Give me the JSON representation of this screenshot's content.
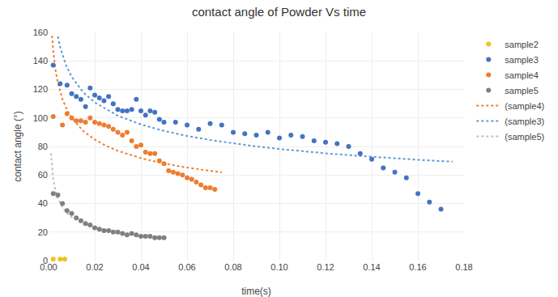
{
  "chart_data": {
    "type": "scatter",
    "title": "contact angle of Powder Vs time",
    "x_label": "time(s)",
    "y_label": "contact angle (°)",
    "xlim": [
      0,
      0.18
    ],
    "ylim": [
      0,
      160
    ],
    "xticks": [
      {
        "value": 0,
        "label": "0.00"
      },
      {
        "value": 0.02,
        "label": "0.02"
      },
      {
        "value": 0.04,
        "label": "0.04"
      },
      {
        "value": 0.06,
        "label": "0.06"
      },
      {
        "value": 0.08,
        "label": "0.08"
      },
      {
        "value": 0.1,
        "label": "0.10"
      },
      {
        "value": 0.12,
        "label": "0.12"
      },
      {
        "value": 0.14,
        "label": "0.14"
      },
      {
        "value": 0.16,
        "label": "0.16"
      },
      {
        "value": 0.18,
        "label": "0.18"
      }
    ],
    "yticks": [
      0,
      20,
      40,
      60,
      80,
      100,
      120,
      140,
      160
    ],
    "grid": true,
    "legend": "right",
    "series": [
      {
        "name": "sample2",
        "type": "scatter",
        "marker": "circle",
        "color": "#f0c020",
        "x": [
          0.002,
          0.005,
          0.007
        ],
        "values": [
          1,
          1,
          1
        ]
      },
      {
        "name": "sample3",
        "type": "scatter",
        "marker": "circle",
        "color": "#4472c4",
        "x": [
          0.002,
          0.005,
          0.008,
          0.01,
          0.012,
          0.014,
          0.016,
          0.018,
          0.02,
          0.022,
          0.024,
          0.026,
          0.028,
          0.03,
          0.032,
          0.034,
          0.036,
          0.038,
          0.04,
          0.042,
          0.044,
          0.046,
          0.048,
          0.05,
          0.055,
          0.06,
          0.065,
          0.07,
          0.075,
          0.08,
          0.085,
          0.09,
          0.095,
          0.1,
          0.105,
          0.11,
          0.115,
          0.12,
          0.125,
          0.13,
          0.135,
          0.14,
          0.145,
          0.15,
          0.155,
          0.16,
          0.165,
          0.17
        ],
        "values": [
          137,
          124,
          123,
          117,
          115,
          113,
          108,
          121,
          116,
          114,
          112,
          115,
          110,
          106,
          105,
          105,
          106,
          113,
          105,
          102,
          105,
          104,
          99,
          97,
          97,
          95,
          92,
          96,
          95,
          90,
          89,
          88,
          90,
          86,
          88,
          87,
          84,
          83,
          82,
          80,
          75,
          71,
          65,
          62,
          58,
          47,
          41,
          36
        ]
      },
      {
        "name": "sample4",
        "type": "scatter",
        "marker": "circle",
        "color": "#ed7d31",
        "x": [
          0.002,
          0.006,
          0.008,
          0.01,
          0.012,
          0.014,
          0.016,
          0.018,
          0.02,
          0.022,
          0.024,
          0.026,
          0.028,
          0.03,
          0.032,
          0.034,
          0.036,
          0.038,
          0.04,
          0.042,
          0.044,
          0.046,
          0.048,
          0.05,
          0.052,
          0.054,
          0.056,
          0.058,
          0.06,
          0.062,
          0.064,
          0.066,
          0.068,
          0.07,
          0.072
        ],
        "values": [
          101,
          95,
          103,
          100,
          98,
          98,
          97,
          100,
          97,
          96,
          95,
          94,
          92,
          90,
          88,
          90,
          84,
          80,
          81,
          76,
          75,
          75,
          70,
          68,
          63,
          62,
          61,
          60,
          58,
          57,
          55,
          53,
          51,
          51,
          50
        ]
      },
      {
        "name": "sample5",
        "type": "scatter",
        "marker": "circle",
        "color": "#808080",
        "x": [
          0.002,
          0.004,
          0.006,
          0.008,
          0.01,
          0.012,
          0.014,
          0.016,
          0.018,
          0.02,
          0.022,
          0.024,
          0.026,
          0.028,
          0.03,
          0.032,
          0.034,
          0.036,
          0.038,
          0.04,
          0.042,
          0.044,
          0.046,
          0.048,
          0.05
        ],
        "values": [
          47,
          46,
          40,
          35,
          33,
          30,
          28,
          26,
          25,
          23,
          22,
          21,
          21,
          20,
          20,
          19,
          18,
          19,
          18,
          17,
          17,
          17,
          16,
          16,
          16
        ]
      },
      {
        "name": "(sample4)",
        "type": "line",
        "line_style": "dotted",
        "color": "#ed7d31",
        "x": [
          0.0015,
          0.002,
          0.003,
          0.004,
          0.006,
          0.008,
          0.01,
          0.015,
          0.02,
          0.025,
          0.03,
          0.035,
          0.04,
          0.045,
          0.05,
          0.055,
          0.06,
          0.065,
          0.07,
          0.075
        ],
        "values": [
          157.64,
          147.16,
          133.55,
          124.67,
          113.14,
          105.62,
          100.13,
          90.87,
          84.83,
          80.42,
          76.98,
          74.2,
          71.86,
          69.87,
          68.13,
          66.59,
          65.22,
          63.98,
          62.86,
          61.83
        ]
      },
      {
        "name": "(sample3)",
        "type": "line",
        "line_style": "dotted",
        "color": "#5b9bd5",
        "x": [
          0.004,
          0.005,
          0.0075,
          0.01,
          0.015,
          0.02,
          0.03,
          0.04,
          0.05,
          0.06,
          0.07,
          0.08,
          0.09,
          0.1,
          0.11,
          0.12,
          0.13,
          0.14,
          0.15,
          0.16,
          0.175
        ],
        "values": [
          157.09,
          149.68,
          137.1,
          128.82,
          117.99,
          110.86,
          101.54,
          95.41,
          90.91,
          87.39,
          84.52,
          82.11,
          80.05,
          78.24,
          76.64,
          75.21,
          73.92,
          72.74,
          71.66,
          70.67,
          69.31
        ]
      },
      {
        "name": "(sample5)",
        "type": "line",
        "line_style": "dotted",
        "color": "#bfbfbf",
        "x": [
          0.001,
          0.002,
          0.003,
          0.004,
          0.006,
          0.008,
          0.01,
          0.015,
          0.02,
          0.025,
          0.03,
          0.035,
          0.04,
          0.045,
          0.05,
          0.052
        ],
        "values": [
          75.32,
          57.35,
          48.9,
          43.67,
          37.23,
          33.25,
          30.46,
          25.97,
          23.19,
          21.25,
          19.78,
          18.61,
          17.66,
          16.86,
          16.18,
          15.93
        ]
      }
    ]
  }
}
